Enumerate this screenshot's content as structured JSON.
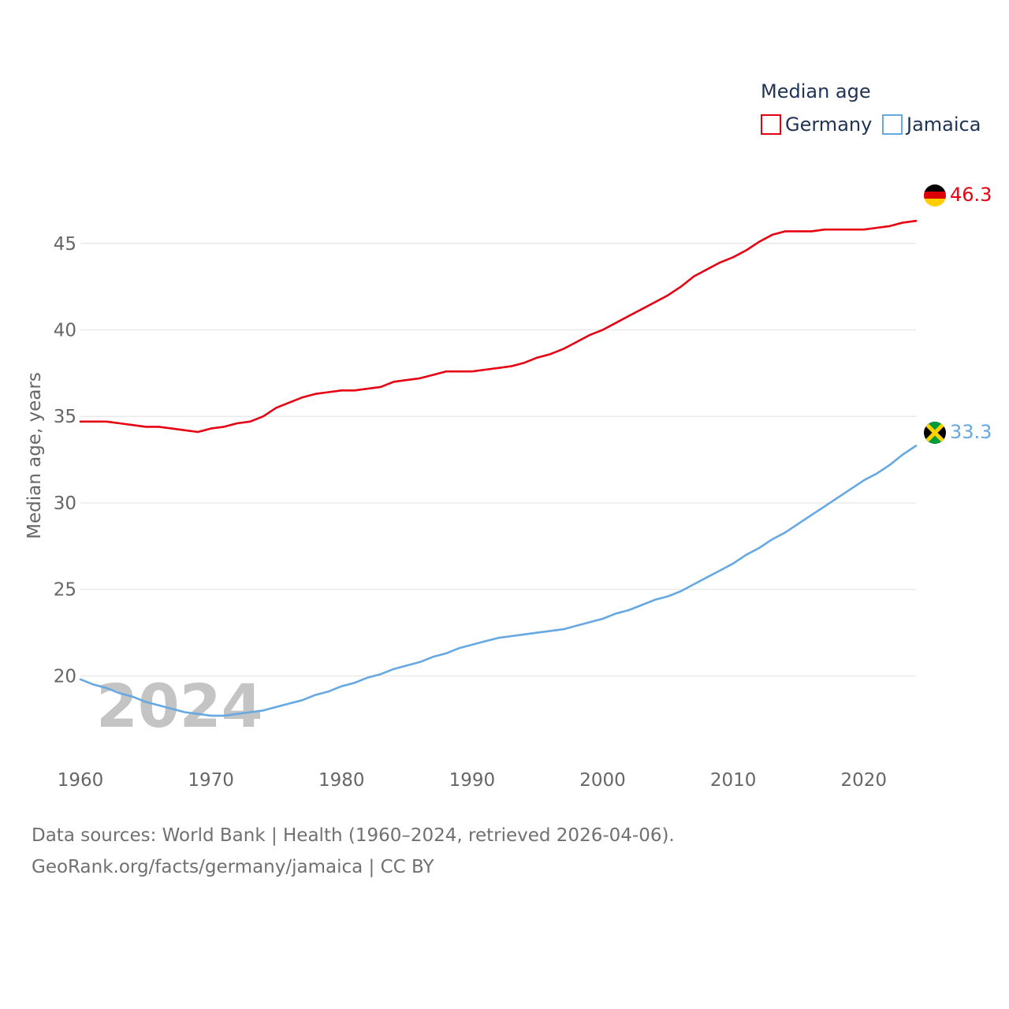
{
  "chart_data": {
    "type": "line",
    "ylabel": "Median age, years",
    "ylim": [
      15.6,
      49.5
    ],
    "xlim": [
      1960,
      2024
    ],
    "x_ticks": [
      1960,
      1970,
      1980,
      1990,
      2000,
      2010,
      2020
    ],
    "x_tick_labels": [
      "1960",
      "1970",
      "1980",
      "1990",
      "2000",
      "2010",
      "2020"
    ],
    "y_ticks": [
      20,
      25,
      30,
      35,
      40,
      45
    ],
    "y_tick_labels": [
      "20",
      "25",
      "30",
      "35",
      "40",
      "45"
    ],
    "grid": true,
    "legend_title": "Median age",
    "legend_position": "top-right",
    "year_label": "2024",
    "x": [
      1960,
      1961,
      1962,
      1963,
      1964,
      1965,
      1966,
      1967,
      1968,
      1969,
      1970,
      1971,
      1972,
      1973,
      1974,
      1975,
      1976,
      1977,
      1978,
      1979,
      1980,
      1981,
      1982,
      1983,
      1984,
      1985,
      1986,
      1987,
      1988,
      1989,
      1990,
      1991,
      1992,
      1993,
      1994,
      1995,
      1996,
      1997,
      1998,
      1999,
      2000,
      2001,
      2002,
      2003,
      2004,
      2005,
      2006,
      2007,
      2008,
      2009,
      2010,
      2011,
      2012,
      2013,
      2014,
      2015,
      2016,
      2017,
      2018,
      2019,
      2020,
      2021,
      2022,
      2023,
      2024
    ],
    "series": [
      {
        "name": "Germany",
        "color": "#e60012",
        "end_label": "46.3",
        "flag": "germany-flag-icon",
        "values": [
          34.7,
          34.7,
          34.7,
          34.6,
          34.5,
          34.4,
          34.4,
          34.3,
          34.2,
          34.1,
          34.3,
          34.4,
          34.6,
          34.7,
          35.0,
          35.5,
          35.8,
          36.1,
          36.3,
          36.4,
          36.5,
          36.5,
          36.6,
          36.7,
          37.0,
          37.1,
          37.2,
          37.4,
          37.6,
          37.6,
          37.6,
          37.7,
          37.8,
          37.9,
          38.1,
          38.4,
          38.6,
          38.9,
          39.3,
          39.7,
          40.0,
          40.4,
          40.8,
          41.2,
          41.6,
          42.0,
          42.5,
          43.1,
          43.5,
          43.9,
          44.2,
          44.6,
          45.1,
          45.5,
          45.7,
          45.7,
          45.7,
          45.8,
          45.8,
          45.8,
          45.8,
          45.9,
          46.0,
          46.2,
          46.3
        ]
      },
      {
        "name": "Jamaica",
        "color": "#65a8e2",
        "end_label": "33.3",
        "flag": "jamaica-flag-icon",
        "values": [
          19.8,
          19.5,
          19.3,
          19.0,
          18.8,
          18.5,
          18.3,
          18.1,
          17.9,
          17.8,
          17.7,
          17.7,
          17.8,
          17.9,
          18.0,
          18.2,
          18.4,
          18.6,
          18.9,
          19.1,
          19.4,
          19.6,
          19.9,
          20.1,
          20.4,
          20.6,
          20.8,
          21.1,
          21.3,
          21.6,
          21.8,
          22.0,
          22.2,
          22.3,
          22.4,
          22.5,
          22.6,
          22.7,
          22.9,
          23.1,
          23.3,
          23.6,
          23.8,
          24.1,
          24.4,
          24.6,
          24.9,
          25.3,
          25.7,
          26.1,
          26.5,
          27.0,
          27.4,
          27.9,
          28.3,
          28.8,
          29.3,
          29.8,
          30.3,
          30.8,
          31.3,
          31.7,
          32.2,
          32.8,
          33.3
        ]
      }
    ]
  },
  "footer": {
    "line1": "Data sources: World Bank | Health (1960–2024, retrieved 2026-04-06).",
    "line2": "GeoRank.org/facts/germany/jamaica | CC BY"
  }
}
